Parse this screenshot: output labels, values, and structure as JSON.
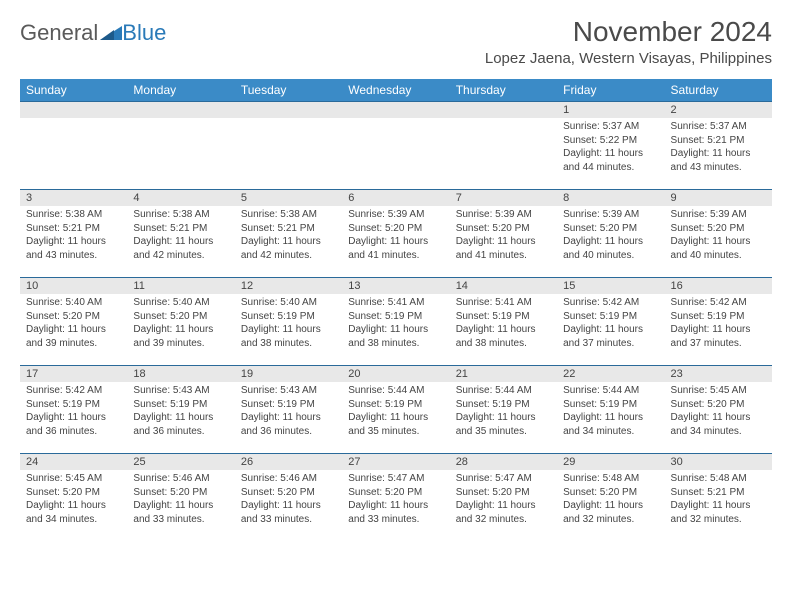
{
  "logo": {
    "part1": "General",
    "part2": "Blue"
  },
  "title": "November 2024",
  "location": "Lopez Jaena, Western Visayas, Philippines",
  "colors": {
    "header_bg": "#3b8bc7",
    "header_text": "#ffffff",
    "border": "#2a6a9a",
    "daynum_bg": "#e8e8e8",
    "body_text": "#444444",
    "logo_blue": "#2a7ab8",
    "logo_gray": "#5a5a5a"
  },
  "weekdays": [
    "Sunday",
    "Monday",
    "Tuesday",
    "Wednesday",
    "Thursday",
    "Friday",
    "Saturday"
  ],
  "weeks": [
    [
      null,
      null,
      null,
      null,
      null,
      {
        "n": "1",
        "sr": "Sunrise: 5:37 AM",
        "ss": "Sunset: 5:22 PM",
        "dl": "Daylight: 11 hours and 44 minutes."
      },
      {
        "n": "2",
        "sr": "Sunrise: 5:37 AM",
        "ss": "Sunset: 5:21 PM",
        "dl": "Daylight: 11 hours and 43 minutes."
      }
    ],
    [
      {
        "n": "3",
        "sr": "Sunrise: 5:38 AM",
        "ss": "Sunset: 5:21 PM",
        "dl": "Daylight: 11 hours and 43 minutes."
      },
      {
        "n": "4",
        "sr": "Sunrise: 5:38 AM",
        "ss": "Sunset: 5:21 PM",
        "dl": "Daylight: 11 hours and 42 minutes."
      },
      {
        "n": "5",
        "sr": "Sunrise: 5:38 AM",
        "ss": "Sunset: 5:21 PM",
        "dl": "Daylight: 11 hours and 42 minutes."
      },
      {
        "n": "6",
        "sr": "Sunrise: 5:39 AM",
        "ss": "Sunset: 5:20 PM",
        "dl": "Daylight: 11 hours and 41 minutes."
      },
      {
        "n": "7",
        "sr": "Sunrise: 5:39 AM",
        "ss": "Sunset: 5:20 PM",
        "dl": "Daylight: 11 hours and 41 minutes."
      },
      {
        "n": "8",
        "sr": "Sunrise: 5:39 AM",
        "ss": "Sunset: 5:20 PM",
        "dl": "Daylight: 11 hours and 40 minutes."
      },
      {
        "n": "9",
        "sr": "Sunrise: 5:39 AM",
        "ss": "Sunset: 5:20 PM",
        "dl": "Daylight: 11 hours and 40 minutes."
      }
    ],
    [
      {
        "n": "10",
        "sr": "Sunrise: 5:40 AM",
        "ss": "Sunset: 5:20 PM",
        "dl": "Daylight: 11 hours and 39 minutes."
      },
      {
        "n": "11",
        "sr": "Sunrise: 5:40 AM",
        "ss": "Sunset: 5:20 PM",
        "dl": "Daylight: 11 hours and 39 minutes."
      },
      {
        "n": "12",
        "sr": "Sunrise: 5:40 AM",
        "ss": "Sunset: 5:19 PM",
        "dl": "Daylight: 11 hours and 38 minutes."
      },
      {
        "n": "13",
        "sr": "Sunrise: 5:41 AM",
        "ss": "Sunset: 5:19 PM",
        "dl": "Daylight: 11 hours and 38 minutes."
      },
      {
        "n": "14",
        "sr": "Sunrise: 5:41 AM",
        "ss": "Sunset: 5:19 PM",
        "dl": "Daylight: 11 hours and 38 minutes."
      },
      {
        "n": "15",
        "sr": "Sunrise: 5:42 AM",
        "ss": "Sunset: 5:19 PM",
        "dl": "Daylight: 11 hours and 37 minutes."
      },
      {
        "n": "16",
        "sr": "Sunrise: 5:42 AM",
        "ss": "Sunset: 5:19 PM",
        "dl": "Daylight: 11 hours and 37 minutes."
      }
    ],
    [
      {
        "n": "17",
        "sr": "Sunrise: 5:42 AM",
        "ss": "Sunset: 5:19 PM",
        "dl": "Daylight: 11 hours and 36 minutes."
      },
      {
        "n": "18",
        "sr": "Sunrise: 5:43 AM",
        "ss": "Sunset: 5:19 PM",
        "dl": "Daylight: 11 hours and 36 minutes."
      },
      {
        "n": "19",
        "sr": "Sunrise: 5:43 AM",
        "ss": "Sunset: 5:19 PM",
        "dl": "Daylight: 11 hours and 36 minutes."
      },
      {
        "n": "20",
        "sr": "Sunrise: 5:44 AM",
        "ss": "Sunset: 5:19 PM",
        "dl": "Daylight: 11 hours and 35 minutes."
      },
      {
        "n": "21",
        "sr": "Sunrise: 5:44 AM",
        "ss": "Sunset: 5:19 PM",
        "dl": "Daylight: 11 hours and 35 minutes."
      },
      {
        "n": "22",
        "sr": "Sunrise: 5:44 AM",
        "ss": "Sunset: 5:19 PM",
        "dl": "Daylight: 11 hours and 34 minutes."
      },
      {
        "n": "23",
        "sr": "Sunrise: 5:45 AM",
        "ss": "Sunset: 5:20 PM",
        "dl": "Daylight: 11 hours and 34 minutes."
      }
    ],
    [
      {
        "n": "24",
        "sr": "Sunrise: 5:45 AM",
        "ss": "Sunset: 5:20 PM",
        "dl": "Daylight: 11 hours and 34 minutes."
      },
      {
        "n": "25",
        "sr": "Sunrise: 5:46 AM",
        "ss": "Sunset: 5:20 PM",
        "dl": "Daylight: 11 hours and 33 minutes."
      },
      {
        "n": "26",
        "sr": "Sunrise: 5:46 AM",
        "ss": "Sunset: 5:20 PM",
        "dl": "Daylight: 11 hours and 33 minutes."
      },
      {
        "n": "27",
        "sr": "Sunrise: 5:47 AM",
        "ss": "Sunset: 5:20 PM",
        "dl": "Daylight: 11 hours and 33 minutes."
      },
      {
        "n": "28",
        "sr": "Sunrise: 5:47 AM",
        "ss": "Sunset: 5:20 PM",
        "dl": "Daylight: 11 hours and 32 minutes."
      },
      {
        "n": "29",
        "sr": "Sunrise: 5:48 AM",
        "ss": "Sunset: 5:20 PM",
        "dl": "Daylight: 11 hours and 32 minutes."
      },
      {
        "n": "30",
        "sr": "Sunrise: 5:48 AM",
        "ss": "Sunset: 5:21 PM",
        "dl": "Daylight: 11 hours and 32 minutes."
      }
    ]
  ]
}
